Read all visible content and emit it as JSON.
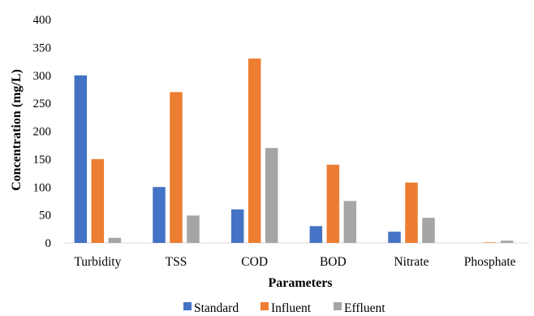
{
  "chart_data": {
    "type": "bar",
    "title": "",
    "xlabel": "Parameters",
    "ylabel": "Concentration (mg/L)",
    "ylim": [
      0,
      400
    ],
    "yticks": [
      0,
      50,
      100,
      150,
      200,
      250,
      300,
      350,
      400
    ],
    "categories": [
      "Turbidity",
      "TSS",
      "COD",
      "BOD",
      "Nitrate",
      "Phosphate"
    ],
    "series": [
      {
        "name": "Standard",
        "color": "#4472C4",
        "values": [
          300,
          100,
          60,
          30,
          20,
          0
        ]
      },
      {
        "name": "Influent",
        "color": "#ED7D31",
        "values": [
          150,
          270,
          330,
          140,
          108,
          1
        ]
      },
      {
        "name": "Effluent",
        "color": "#A5A5A5",
        "values": [
          9,
          49,
          170,
          75,
          45,
          4
        ]
      }
    ],
    "grid": false,
    "legend_position": "bottom"
  }
}
